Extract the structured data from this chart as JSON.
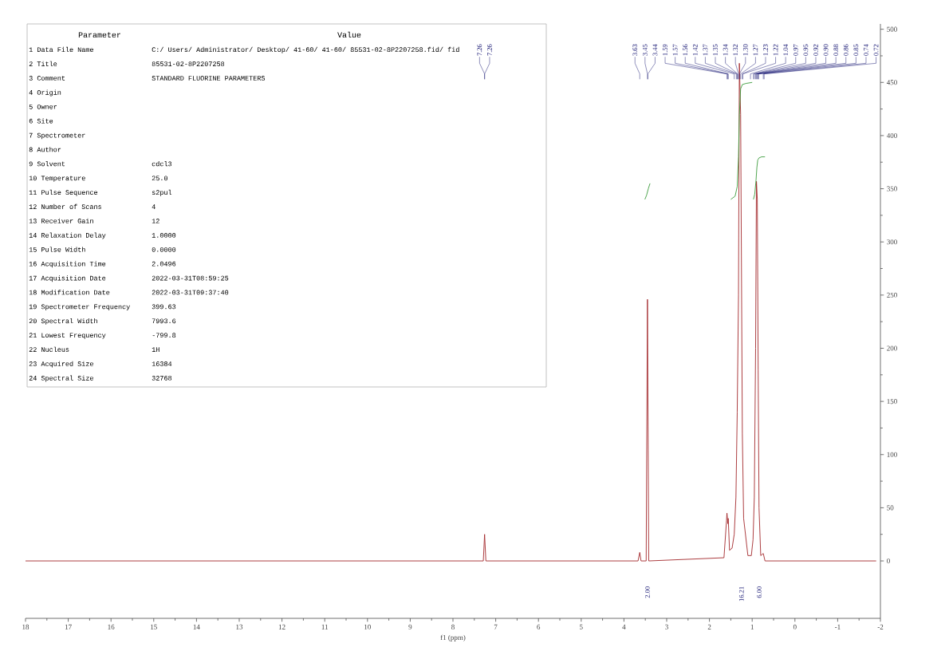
{
  "chart_data": {
    "type": "line",
    "xlabel": "f1 (ppm)",
    "xlim": [
      18,
      -2
    ],
    "xticks": [
      18,
      17,
      16,
      15,
      14,
      13,
      12,
      11,
      10,
      9,
      8,
      7,
      6,
      5,
      4,
      3,
      2,
      1,
      0,
      -1,
      -2
    ],
    "ylim": [
      -54,
      505
    ],
    "yticks": [
      0,
      50,
      100,
      150,
      200,
      250,
      300,
      350,
      400,
      450,
      500
    ],
    "series": [
      {
        "color": "#a3282c",
        "x": [
          18,
          7.29,
          7.26,
          7.23,
          3.67,
          3.63,
          3.6,
          3.48,
          3.45,
          3.42,
          1.66,
          1.6,
          1.59,
          1.57,
          1.56,
          1.53,
          1.47,
          1.42,
          1.38,
          1.35,
          1.32,
          1.3,
          1.27,
          1.23,
          1.2,
          1.1,
          1.02,
          0.98,
          0.95,
          0.92,
          0.9,
          0.88,
          0.86,
          0.84,
          0.8,
          0.74,
          0.7,
          -1.9
        ],
        "values": [
          0,
          0,
          25,
          0,
          0,
          8,
          0,
          0,
          246,
          0,
          3,
          38,
          45,
          35,
          40,
          10,
          12,
          25,
          60,
          140,
          250,
          468,
          420,
          120,
          40,
          5,
          5,
          20,
          60,
          200,
          357,
          340,
          180,
          50,
          5,
          7,
          0,
          0
        ]
      },
      {
        "color": "#3a9a3a",
        "x": [
          3.51,
          3.47,
          3.43,
          3.39
        ],
        "values": [
          340,
          344,
          350,
          355
        ]
      },
      {
        "color": "#3b9b3b",
        "x": [
          1.5,
          1.4,
          1.35,
          1.32,
          1.3,
          1.27,
          1.23,
          1.15,
          1.0
        ],
        "values": [
          340,
          343,
          352,
          380,
          420,
          444,
          448,
          449,
          450
        ]
      },
      {
        "color": "#3c9c3c",
        "x": [
          0.97,
          0.94,
          0.91,
          0.89,
          0.87,
          0.84,
          0.78,
          0.7
        ],
        "values": [
          340,
          345,
          358,
          370,
          377,
          379,
          380,
          380
        ]
      }
    ],
    "annotations": [
      "Parameter",
      "Value",
      "1 Data File Name",
      "C:/ Users/ Administrator/ Desktop/ 41-60/ 41-60/ 85531-02-8P2207258.fid/ fid",
      "2 Title",
      "85531-02-8P2207258",
      "3 Comment",
      "STANDARD FLUORINE PARAMETERS",
      "4 Origin",
      null,
      "5 Owner",
      null,
      "6 Site",
      null,
      "7 Spectrometer",
      null,
      "8 Author",
      null,
      "9 Solvent",
      "cdcl3",
      "10 Temperature",
      "25.0",
      "11 Pulse Sequence",
      "s2pul",
      "12 Number of Scans",
      "4",
      "13 Receiver Gain",
      "12",
      "14 Relaxation Delay",
      "1.0000",
      "15 Pulse Width",
      "0.0000",
      "16 Acquisition Time",
      "2.0496",
      "17 Acquisition Date",
      "2022-03-31T08:59:25",
      "18 Modification Date",
      "2022-03-31T09:37:40",
      "19 Spectrometer Frequency",
      "399.63",
      "20 Spectral Width",
      "7993.6",
      "21 Lowest Frequency",
      "-799.8",
      "22 Nucleus",
      "1H",
      "23 Acquired Size",
      "16384",
      "24 Spectral Size",
      "32768",
      {
        "text": "7.26",
        "x": 7.26
      },
      {
        "text": "7.26",
        "x": 7.26
      },
      {
        "text": "3.63",
        "x": 3.63
      },
      {
        "text": "3.45",
        "x": 3.45
      },
      {
        "text": "3.44",
        "x": 3.44
      },
      {
        "text": "1.59",
        "x": 1.59
      },
      {
        "text": "1.57",
        "x": 1.57
      },
      {
        "text": "1.56",
        "x": 1.56
      },
      {
        "text": "1.42",
        "x": 1.42
      },
      {
        "text": "1.37",
        "x": 1.37
      },
      {
        "text": "1.35",
        "x": 1.35
      },
      {
        "text": "1.34",
        "x": 1.34
      },
      {
        "text": "1.32",
        "x": 1.32
      },
      {
        "text": "1.30",
        "x": 1.3
      },
      {
        "text": "1.27",
        "x": 1.27
      },
      {
        "text": "1.23",
        "x": 1.23
      },
      {
        "text": "1.22",
        "x": 1.22
      },
      {
        "text": "1.04",
        "x": 1.04
      },
      {
        "text": "0.97",
        "x": 0.97
      },
      {
        "text": "0.95",
        "x": 0.95
      },
      {
        "text": "0.92",
        "x": 0.92
      },
      {
        "text": "0.90",
        "x": 0.9
      },
      {
        "text": "0.88",
        "x": 0.88
      },
      {
        "text": "0.86",
        "x": 0.86
      },
      {
        "text": "0.85",
        "x": 0.85
      },
      {
        "text": "0.74",
        "x": 0.74
      },
      {
        "text": "0.72",
        "x": 0.72
      },
      "2.00",
      "16.21",
      "6.00"
    ]
  }
}
